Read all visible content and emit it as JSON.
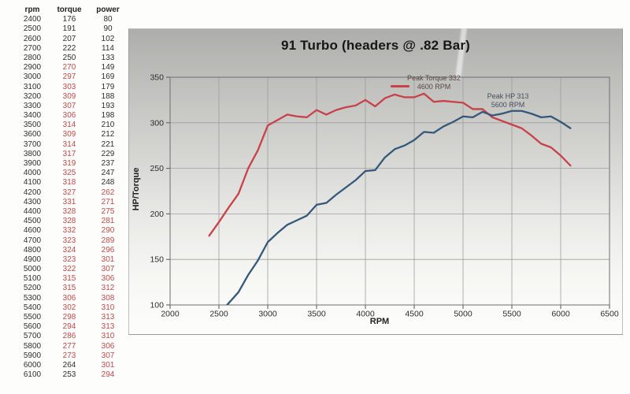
{
  "table": {
    "headers": [
      "rpm",
      "torque",
      "power"
    ],
    "rows": [
      {
        "rpm": 2400,
        "torque": 176,
        "power": 80,
        "torque_red": false,
        "power_red": false
      },
      {
        "rpm": 2500,
        "torque": 191,
        "power": 90,
        "torque_red": false,
        "power_red": false
      },
      {
        "rpm": 2600,
        "torque": 207,
        "power": 102,
        "torque_red": false,
        "power_red": false
      },
      {
        "rpm": 2700,
        "torque": 222,
        "power": 114,
        "torque_red": false,
        "power_red": false
      },
      {
        "rpm": 2800,
        "torque": 250,
        "power": 133,
        "torque_red": false,
        "power_red": false
      },
      {
        "rpm": 2900,
        "torque": 270,
        "power": 149,
        "torque_red": true,
        "power_red": false
      },
      {
        "rpm": 3000,
        "torque": 297,
        "power": 169,
        "torque_red": true,
        "power_red": false
      },
      {
        "rpm": 3100,
        "torque": 303,
        "power": 179,
        "torque_red": true,
        "power_red": false
      },
      {
        "rpm": 3200,
        "torque": 309,
        "power": 188,
        "torque_red": true,
        "power_red": false
      },
      {
        "rpm": 3300,
        "torque": 307,
        "power": 193,
        "torque_red": true,
        "power_red": false
      },
      {
        "rpm": 3400,
        "torque": 306,
        "power": 198,
        "torque_red": true,
        "power_red": false
      },
      {
        "rpm": 3500,
        "torque": 314,
        "power": 210,
        "torque_red": true,
        "power_red": false
      },
      {
        "rpm": 3600,
        "torque": 309,
        "power": 212,
        "torque_red": true,
        "power_red": false
      },
      {
        "rpm": 3700,
        "torque": 314,
        "power": 221,
        "torque_red": true,
        "power_red": false
      },
      {
        "rpm": 3800,
        "torque": 317,
        "power": 229,
        "torque_red": true,
        "power_red": false
      },
      {
        "rpm": 3900,
        "torque": 319,
        "power": 237,
        "torque_red": true,
        "power_red": false
      },
      {
        "rpm": 4000,
        "torque": 325,
        "power": 247,
        "torque_red": true,
        "power_red": false
      },
      {
        "rpm": 4100,
        "torque": 318,
        "power": 248,
        "torque_red": true,
        "power_red": false
      },
      {
        "rpm": 4200,
        "torque": 327,
        "power": 262,
        "torque_red": true,
        "power_red": true
      },
      {
        "rpm": 4300,
        "torque": 331,
        "power": 271,
        "torque_red": true,
        "power_red": true
      },
      {
        "rpm": 4400,
        "torque": 328,
        "power": 275,
        "torque_red": true,
        "power_red": true
      },
      {
        "rpm": 4500,
        "torque": 328,
        "power": 281,
        "torque_red": true,
        "power_red": true
      },
      {
        "rpm": 4600,
        "torque": 332,
        "power": 290,
        "torque_red": true,
        "power_red": true
      },
      {
        "rpm": 4700,
        "torque": 323,
        "power": 289,
        "torque_red": true,
        "power_red": true
      },
      {
        "rpm": 4800,
        "torque": 324,
        "power": 296,
        "torque_red": true,
        "power_red": true
      },
      {
        "rpm": 4900,
        "torque": 323,
        "power": 301,
        "torque_red": true,
        "power_red": true
      },
      {
        "rpm": 5000,
        "torque": 322,
        "power": 307,
        "torque_red": true,
        "power_red": true
      },
      {
        "rpm": 5100,
        "torque": 315,
        "power": 306,
        "torque_red": true,
        "power_red": true
      },
      {
        "rpm": 5200,
        "torque": 315,
        "power": 312,
        "torque_red": true,
        "power_red": true
      },
      {
        "rpm": 5300,
        "torque": 306,
        "power": 308,
        "torque_red": true,
        "power_red": true
      },
      {
        "rpm": 5400,
        "torque": 302,
        "power": 310,
        "torque_red": true,
        "power_red": true
      },
      {
        "rpm": 5500,
        "torque": 298,
        "power": 313,
        "torque_red": true,
        "power_red": true
      },
      {
        "rpm": 5600,
        "torque": 294,
        "power": 313,
        "torque_red": true,
        "power_red": true
      },
      {
        "rpm": 5700,
        "torque": 286,
        "power": 310,
        "torque_red": true,
        "power_red": true
      },
      {
        "rpm": 5800,
        "torque": 277,
        "power": 306,
        "torque_red": true,
        "power_red": true
      },
      {
        "rpm": 5900,
        "torque": 273,
        "power": 307,
        "torque_red": true,
        "power_red": true
      },
      {
        "rpm": 6000,
        "torque": 264,
        "power": 301,
        "torque_red": false,
        "power_red": true
      },
      {
        "rpm": 6100,
        "torque": 253,
        "power": 294,
        "torque_red": false,
        "power_red": true
      }
    ]
  },
  "chart": {
    "title": "91 Turbo (headers @ .82 Bar)",
    "ylabel": "HP/Torque",
    "xlabel": "RPM",
    "annotations": {
      "peak_torque": {
        "line1": "Peak Torque 332",
        "line2": "4600 RPM"
      },
      "peak_hp": {
        "line1": "Peak HP 313",
        "line2": "5600 RPM"
      }
    }
  },
  "chart_data": {
    "type": "line",
    "title": "91 Turbo (headers @ .82 Bar)",
    "xlabel": "RPM",
    "ylabel": "HP/Torque",
    "xlim": [
      2000,
      6500
    ],
    "ylim": [
      100,
      350
    ],
    "x_ticks": [
      2000,
      2500,
      3000,
      3500,
      4000,
      4500,
      5000,
      5500,
      6000,
      6500
    ],
    "y_ticks": [
      100,
      150,
      200,
      250,
      300,
      350
    ],
    "grid": true,
    "legend_position": "none",
    "x": [
      2400,
      2500,
      2600,
      2700,
      2800,
      2900,
      3000,
      3100,
      3200,
      3300,
      3400,
      3500,
      3600,
      3700,
      3800,
      3900,
      4000,
      4100,
      4200,
      4300,
      4400,
      4500,
      4600,
      4700,
      4800,
      4900,
      5000,
      5100,
      5200,
      5300,
      5400,
      5500,
      5600,
      5700,
      5800,
      5900,
      6000,
      6100
    ],
    "series": [
      {
        "name": "Torque",
        "color": "#c8414b",
        "values": [
          176,
          191,
          207,
          222,
          250,
          270,
          297,
          303,
          309,
          307,
          306,
          314,
          309,
          314,
          317,
          319,
          325,
          318,
          327,
          331,
          328,
          328,
          332,
          323,
          324,
          323,
          322,
          315,
          315,
          306,
          302,
          298,
          294,
          286,
          277,
          273,
          264,
          253
        ]
      },
      {
        "name": "Power (HP)",
        "color": "#35587a",
        "values": [
          80,
          90,
          102,
          114,
          133,
          149,
          169,
          179,
          188,
          193,
          198,
          210,
          212,
          221,
          229,
          237,
          247,
          248,
          262,
          271,
          275,
          281,
          290,
          289,
          296,
          301,
          307,
          306,
          312,
          308,
          310,
          313,
          313,
          310,
          306,
          307,
          301,
          294
        ]
      }
    ],
    "annotations": [
      {
        "text": "Peak Torque 332 / 4600 RPM",
        "x": 4600,
        "y": 332
      },
      {
        "text": "Peak HP 313 / 5600 RPM",
        "x": 5600,
        "y": 313
      }
    ]
  },
  "colors": {
    "torque_curve": "#c8414b",
    "power_curve": "#35587a",
    "table_red_text": "#bf4a4a",
    "table_black_text": "#2f2f2f",
    "grid_line": "#9d9d9a",
    "plot_border": "#6e6e6c",
    "scan_gray_top": "#adadaa"
  }
}
